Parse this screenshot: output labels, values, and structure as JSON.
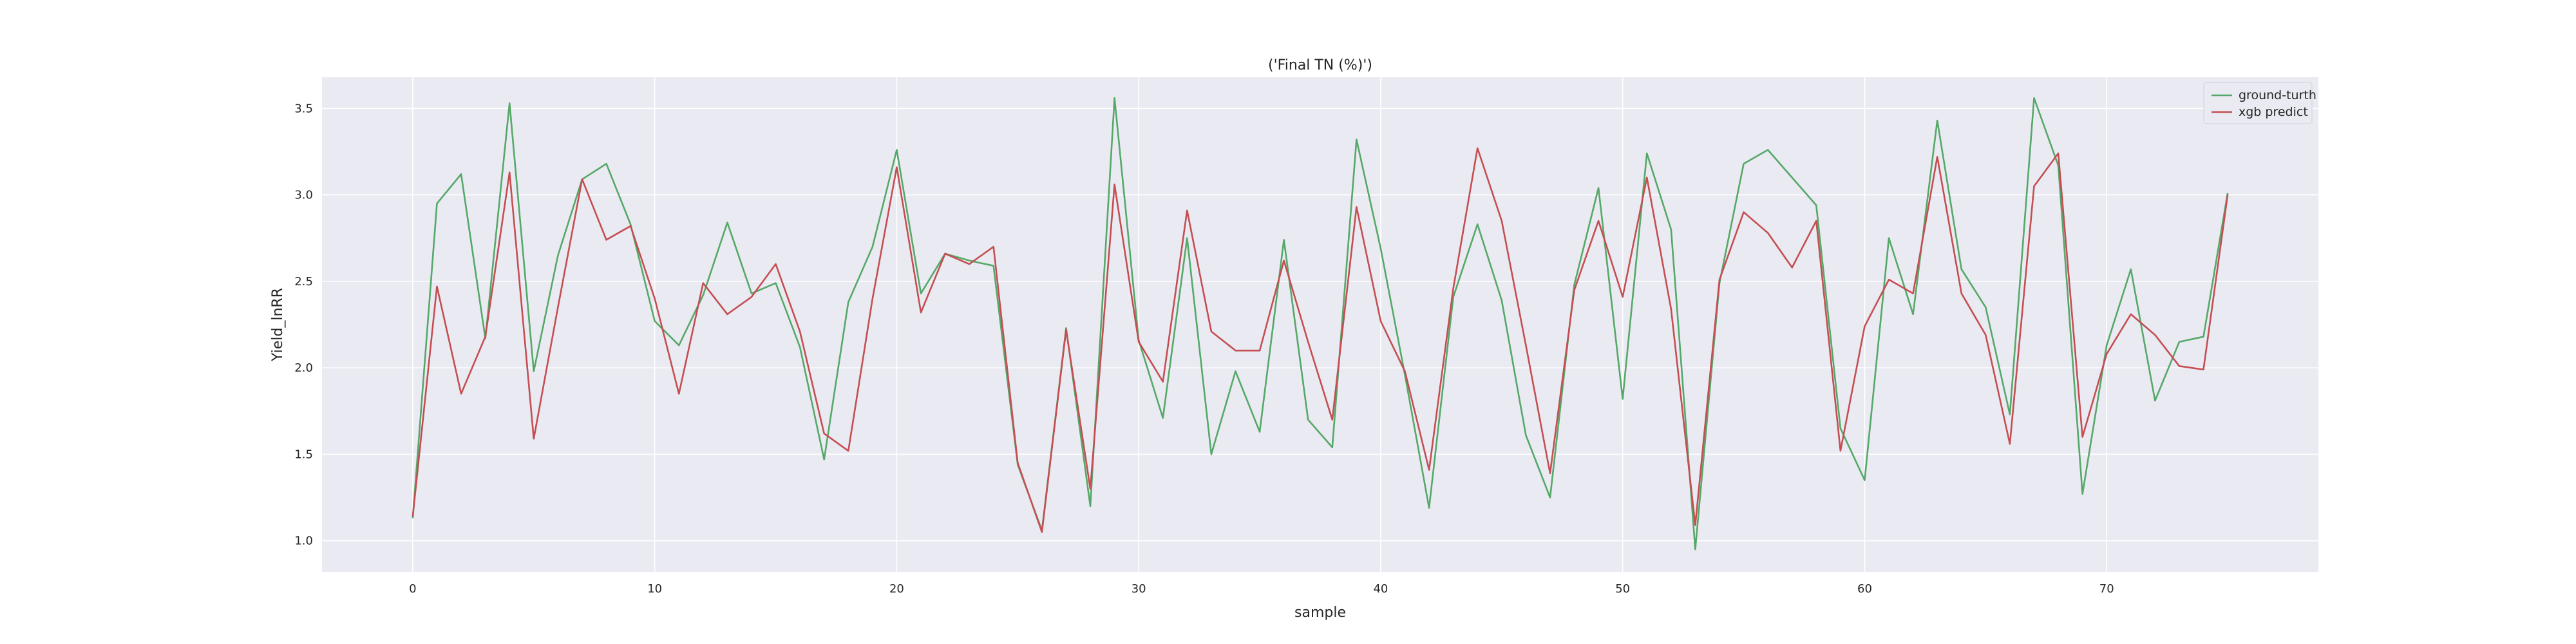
{
  "chart_data": {
    "type": "line",
    "title": "('Final TN (%)')",
    "xlabel": "sample",
    "ylabel": "Yield_lnRR",
    "xlim": [
      -3.75,
      78.75
    ],
    "ylim": [
      0.82,
      3.68
    ],
    "xticks": [
      0,
      10,
      20,
      30,
      40,
      50,
      60,
      70
    ],
    "yticks": [
      1.0,
      1.5,
      2.0,
      2.5,
      3.0,
      3.5
    ],
    "grid": true,
    "legend_position": "top-right",
    "x": [
      0,
      1,
      2,
      3,
      4,
      5,
      6,
      7,
      8,
      9,
      10,
      11,
      12,
      13,
      14,
      15,
      16,
      17,
      18,
      19,
      20,
      21,
      22,
      23,
      24,
      25,
      26,
      27,
      28,
      29,
      30,
      31,
      32,
      33,
      34,
      35,
      36,
      37,
      38,
      39,
      40,
      41,
      42,
      43,
      44,
      45,
      46,
      47,
      48,
      49,
      50,
      51,
      52,
      53,
      54,
      55,
      56,
      57,
      58,
      59,
      60,
      61,
      62,
      63,
      64,
      65,
      66,
      67,
      68,
      69,
      70,
      71,
      72,
      73,
      74,
      75
    ],
    "series": [
      {
        "name": "ground-turth",
        "color": "#55a868",
        "values": [
          1.13,
          2.95,
          3.12,
          2.17,
          3.53,
          1.98,
          2.65,
          3.09,
          3.18,
          2.83,
          2.27,
          2.13,
          2.42,
          2.84,
          2.43,
          2.49,
          2.12,
          1.47,
          2.38,
          2.7,
          3.26,
          2.43,
          2.66,
          2.62,
          2.59,
          1.44,
          1.06,
          2.23,
          1.2,
          3.56,
          2.16,
          1.71,
          2.75,
          1.5,
          1.98,
          1.63,
          2.74,
          1.7,
          1.54,
          3.32,
          2.69,
          1.96,
          1.19,
          2.41,
          2.83,
          2.39,
          1.61,
          1.25,
          2.48,
          3.04,
          1.82,
          3.24,
          2.8,
          0.95,
          2.49,
          3.18,
          3.26,
          3.1,
          2.94,
          1.65,
          1.35,
          2.75,
          2.31,
          3.43,
          2.57,
          2.35,
          1.73,
          3.56,
          3.17,
          1.27,
          2.13,
          2.57,
          1.81,
          2.15,
          2.18,
          3.01
        ]
      },
      {
        "name": "xgb predict",
        "color": "#c44e52",
        "values": [
          1.14,
          2.47,
          1.85,
          2.18,
          3.13,
          1.59,
          2.35,
          3.09,
          2.74,
          2.82,
          2.4,
          1.85,
          2.49,
          2.31,
          2.41,
          2.6,
          2.21,
          1.62,
          1.52,
          2.4,
          3.16,
          2.32,
          2.66,
          2.6,
          2.7,
          1.45,
          1.05,
          2.22,
          1.3,
          3.06,
          2.15,
          1.92,
          2.91,
          2.21,
          2.1,
          2.1,
          2.62,
          2.15,
          1.7,
          2.93,
          2.27,
          1.98,
          1.41,
          2.46,
          3.27,
          2.85,
          2.13,
          1.39,
          2.45,
          2.85,
          2.41,
          3.1,
          2.34,
          1.09,
          2.51,
          2.9,
          2.78,
          2.58,
          2.85,
          1.52,
          2.24,
          2.51,
          2.43,
          3.22,
          2.43,
          2.19,
          1.56,
          3.05,
          3.24,
          1.6,
          2.08,
          2.31,
          2.19,
          2.01,
          1.99,
          3.0
        ]
      }
    ]
  }
}
